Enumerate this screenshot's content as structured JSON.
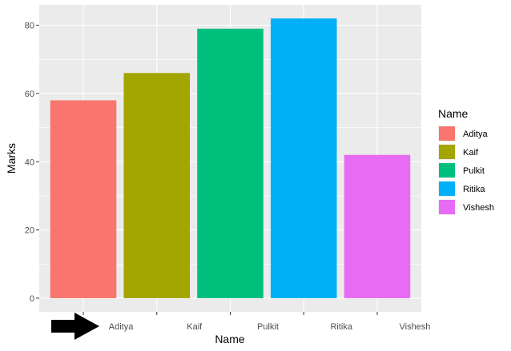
{
  "chart_data": {
    "type": "bar",
    "title": "",
    "xlabel": "Name",
    "ylabel": "Marks",
    "categories": [
      "Aditya",
      "Kaif",
      "Pulkit",
      "Ritika",
      "Vishesh"
    ],
    "values": [
      58,
      66,
      79,
      82,
      42
    ],
    "colors": [
      "#F8766D",
      "#A3A500",
      "#00BF7D",
      "#00B0F6",
      "#E76BF3"
    ],
    "ylim": [
      -4,
      86
    ],
    "yticks": [
      0,
      20,
      40,
      60,
      80
    ],
    "grid": true,
    "legend": {
      "title": "Name",
      "placement": "right",
      "entries": [
        "Aditya",
        "Kaif",
        "Pulkit",
        "Ritika",
        "Vishesh"
      ]
    }
  },
  "annotation": {
    "icon": "right-arrow-icon",
    "color": "#000000"
  }
}
